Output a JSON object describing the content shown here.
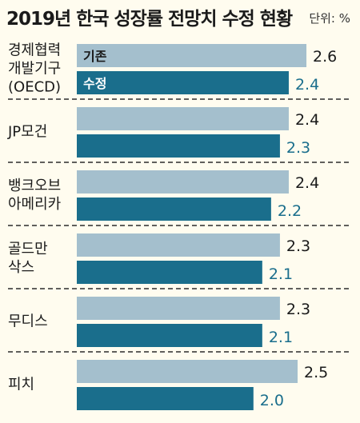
{
  "title": "2019년 한국 성장률 전망치 수정 현황",
  "unit": "단위: %",
  "colors": {
    "background": "#fffcef",
    "previous": "#a4bfcd",
    "revised": "#1a6e8c",
    "revised_text": "#1a6e8c",
    "previous_text": "#1a1a1a",
    "separator": "#2b2b2b"
  },
  "chart_data": {
    "type": "bar",
    "orientation": "horizontal",
    "title": "2019년 한국 성장률 전망치 수정 현황",
    "unit": "단위: %",
    "categories": [
      [
        "경제협력",
        "개발기구",
        "(OECD)"
      ],
      [
        "JP모건"
      ],
      [
        "뱅크오브",
        "아메리카"
      ],
      [
        "골드만",
        "삭스"
      ],
      [
        "무디스"
      ],
      [
        "피치"
      ]
    ],
    "series": [
      {
        "name": "기존",
        "values": [
          2.6,
          2.4,
          2.4,
          2.3,
          2.3,
          2.5
        ],
        "labels": [
          "2.6",
          "2.4",
          "2.4",
          "2.3",
          "2.3",
          "2.5"
        ]
      },
      {
        "name": "수정",
        "values": [
          2.4,
          2.3,
          2.2,
          2.1,
          2.1,
          2.0
        ],
        "labels": [
          "2.4",
          "2.3",
          "2.2",
          "2.1",
          "2.1",
          "2.0"
        ]
      }
    ],
    "legend_placement": "inside-first-group"
  }
}
